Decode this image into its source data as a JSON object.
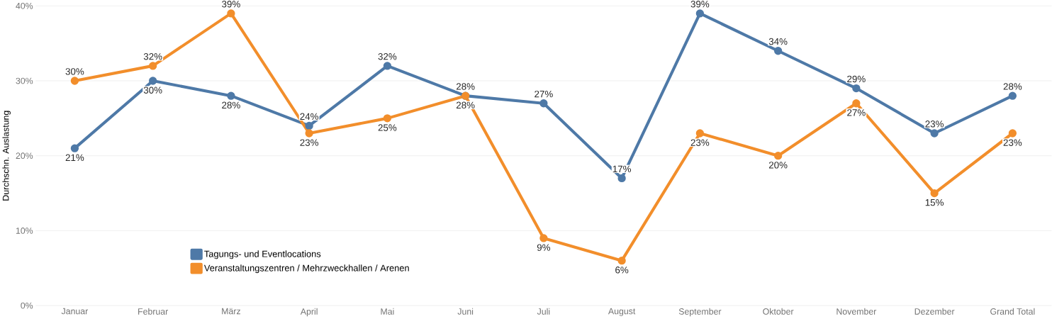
{
  "chart_data": {
    "type": "line",
    "ylabel": "Durchschn. Auslastung",
    "categories": [
      "Januar",
      "Februar",
      "März",
      "April",
      "Mai",
      "Juni",
      "Juli",
      "August",
      "September",
      "Oktober",
      "November",
      "Dezember",
      "Grand Total"
    ],
    "series": [
      {
        "name": "Tagungs- und Eventlocations",
        "color": "#4e79a7",
        "values": [
          21,
          30,
          28,
          24,
          32,
          28,
          27,
          17,
          39,
          34,
          29,
          23,
          28
        ],
        "value_labels": [
          "21%",
          "30%",
          "28%",
          "24%",
          "32%",
          "28%",
          "27%",
          "17%",
          "39%",
          "34%",
          "29%",
          "23%",
          "28%"
        ]
      },
      {
        "name": "Veranstaltungszentren / Mehrzweckhallen / Arenen",
        "color": "#f28e2b",
        "values": [
          30,
          32,
          39,
          23,
          25,
          28,
          9,
          6,
          23,
          20,
          27,
          15,
          23
        ],
        "value_labels": [
          "30%",
          "32%",
          "39%",
          "23%",
          "25%",
          "28%",
          "9%",
          "6%",
          "23%",
          "20%",
          "27%",
          "15%",
          "23%"
        ]
      }
    ],
    "ylim": [
      0,
      40
    ],
    "yticks": [
      {
        "value": 0,
        "label": "0%"
      },
      {
        "value": 10,
        "label": "10%"
      },
      {
        "value": 20,
        "label": "20%"
      },
      {
        "value": 30,
        "label": "30%"
      },
      {
        "value": 40,
        "label": "40%"
      }
    ],
    "grid": "y",
    "legend": "bottom left",
    "marker": "circle",
    "line_style": "solid"
  }
}
